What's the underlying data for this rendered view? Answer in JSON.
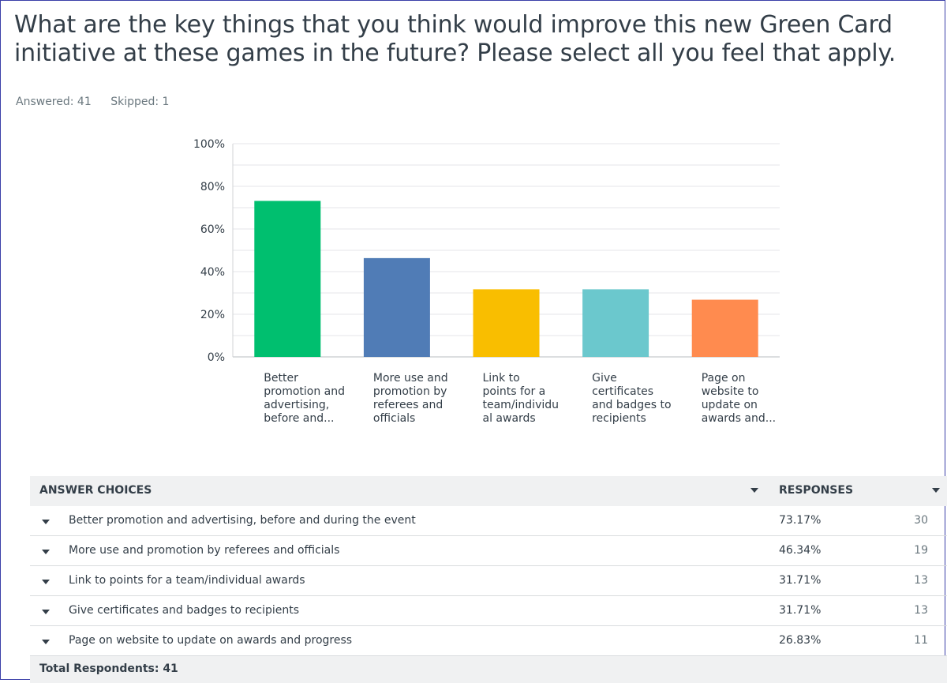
{
  "question": "What are the key things that you think would improve this new Green Card initiative at these games in the future? Please select all you feel that apply.",
  "answered": "Answered: 41",
  "skipped": "Skipped: 1",
  "chart_data": {
    "type": "bar",
    "categories": [
      [
        "Better",
        "promotion and",
        "advertising,",
        "before and..."
      ],
      [
        "More use and",
        "promotion by",
        "referees and",
        "officials"
      ],
      [
        "Link to",
        "points for a",
        "team/individu",
        "al awards"
      ],
      [
        "Give",
        "certificates",
        "and badges to",
        "recipients"
      ],
      [
        "Page on",
        "website to",
        "update on",
        "awards and..."
      ]
    ],
    "values": [
      73.17,
      46.34,
      31.71,
      31.71,
      26.83
    ],
    "colors": [
      "#00bf6f",
      "#507cb6",
      "#f9be00",
      "#6bc8cd",
      "#ff8b4f"
    ],
    "ylim": [
      0,
      100
    ],
    "yticks": [
      "0%",
      "20%",
      "40%",
      "60%",
      "80%",
      "100%"
    ],
    "grid": true
  },
  "table": {
    "header_choices": "ANSWER CHOICES",
    "header_responses": "RESPONSES",
    "rows": [
      {
        "label": "Better promotion and advertising, before and during the event",
        "pct": "73.17%",
        "count": "30"
      },
      {
        "label": "More use and promotion by referees and officials",
        "pct": "46.34%",
        "count": "19"
      },
      {
        "label": "Link to points for a team/individual awards",
        "pct": "31.71%",
        "count": "13"
      },
      {
        "label": "Give certificates and badges to recipients",
        "pct": "31.71%",
        "count": "13"
      },
      {
        "label": "Page on website to update on awards and progress",
        "pct": "26.83%",
        "count": "11"
      }
    ],
    "total": "Total Respondents: 41"
  }
}
